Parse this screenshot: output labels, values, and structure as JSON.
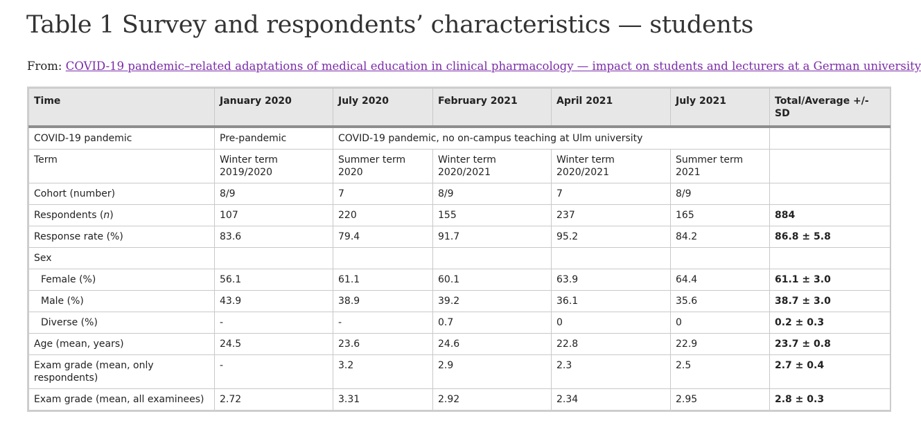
{
  "title": "Table 1 Survey and respondents’ characteristics — students",
  "from_label": "From:",
  "source_link": "COVID-19 pandemic–related adaptations of medical education in clinical pharmacology — impact on students and lecturers at a German university",
  "table": {
    "headers": [
      "Time",
      "January 2020",
      "July 2020",
      "February 2021",
      "April 2021",
      "July 2021",
      "Total/Average +/- SD"
    ],
    "pandemic_row": {
      "label": "COVID-19 pandemic",
      "pre": "Pre-pandemic",
      "during": "COVID-19 pandemic, no on-campus teaching at Ulm university",
      "total": ""
    },
    "rows": [
      {
        "label": "Term",
        "cells": [
          "Winter term 2019/2020",
          "Summer term 2020",
          "Winter term 2020/2021",
          "Winter term 2020/2021",
          "Summer term 2021"
        ],
        "total": ""
      },
      {
        "label": "Cohort (number)",
        "cells": [
          "8/9",
          "7",
          "8/9",
          "7",
          "8/9"
        ],
        "total": ""
      },
      {
        "label_pre": "Respondents (",
        "label_italic": "n",
        "label_post": ")",
        "cells": [
          "107",
          "220",
          "155",
          "237",
          "165"
        ],
        "total": "884"
      },
      {
        "label": "Response rate (%)",
        "cells": [
          "83.6",
          "79.4",
          "91.7",
          "95.2",
          "84.2"
        ],
        "total": "86.8 ± 5.8"
      },
      {
        "label": "Sex",
        "cells": [
          "",
          "",
          "",
          "",
          ""
        ],
        "total": ""
      },
      {
        "label": "Female (%)",
        "cells": [
          "56.1",
          "61.1",
          "60.1",
          "63.9",
          "64.4"
        ],
        "total": "61.1 ± 3.0"
      },
      {
        "label": "Male (%)",
        "cells": [
          "43.9",
          "38.9",
          "39.2",
          "36.1",
          "35.6"
        ],
        "total": "38.7 ± 3.0"
      },
      {
        "label": "Diverse (%)",
        "cells": [
          "-",
          "-",
          "0.7",
          "0",
          "0"
        ],
        "total": "0.2 ± 0.3"
      },
      {
        "label": "Age (mean, years)",
        "cells": [
          "24.5",
          "23.6",
          "24.6",
          "22.8",
          "22.9"
        ],
        "total": "23.7 ± 0.8"
      },
      {
        "label": "Exam grade (mean, only respondents)",
        "cells": [
          "-",
          "3.2",
          "2.9",
          "2.3",
          "2.5"
        ],
        "total": "2.7 ± 0.4"
      },
      {
        "label": "Exam grade (mean, all examinees)",
        "cells": [
          "2.72",
          "3.31",
          "2.92",
          "2.34",
          "2.95"
        ],
        "total": "2.8 ± 0.3"
      }
    ]
  }
}
